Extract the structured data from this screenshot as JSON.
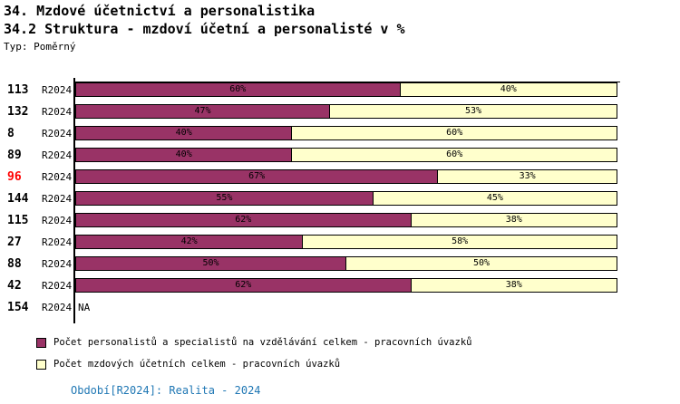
{
  "header": {
    "title": "34. Mzdové účetnictví a personalistika",
    "subtitle": "34.2 Struktura - mzdoví účetní a personalisté v %",
    "type_label": "Typ: Poměrný"
  },
  "colors": {
    "highlight": "#ff0000",
    "footer": "#1f77b4",
    "axis": "#000000"
  },
  "chart_data": {
    "type": "bar",
    "orientation": "horizontal",
    "stacked": true,
    "unit": "%",
    "xlim": [
      0,
      100
    ],
    "period": "R2024",
    "categories": [
      "113",
      "132",
      "8",
      "89",
      "96",
      "144",
      "115",
      "27",
      "88",
      "42",
      "154"
    ],
    "series": [
      {
        "name": "Počet personalistů a specialistů na vzdělávání celkem - pracovních úvazků",
        "color": "#993366",
        "values": [
          60,
          47,
          40,
          40,
          67,
          55,
          62,
          42,
          50,
          62,
          null
        ]
      },
      {
        "name": "Počet mzdových účetních celkem - pracovních úvazků",
        "color": "#ffffcc",
        "values": [
          40,
          53,
          60,
          60,
          33,
          45,
          38,
          58,
          50,
          38,
          null
        ]
      }
    ],
    "na_label": "NA",
    "highlighted_category": "96",
    "value_label_format": "{v}%",
    "legend_position": "bottom",
    "grid": false
  },
  "footer": {
    "text": "Období[R2024]: Realita - 2024"
  }
}
